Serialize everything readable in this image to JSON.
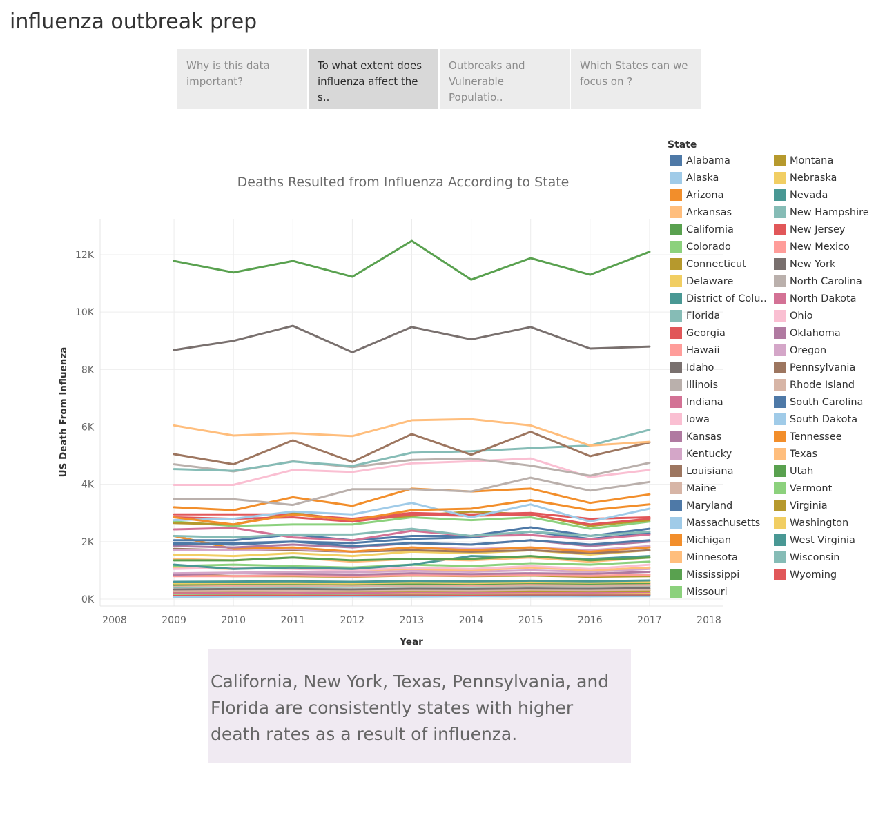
{
  "app": {
    "title": "influenza outbreak prep"
  },
  "story": {
    "points": [
      {
        "label": "Why is this data important?",
        "active": false
      },
      {
        "label": "To what extent does influenza affect the s..",
        "active": true
      },
      {
        "label": "Outbreaks and Vulnerable Populatio..",
        "active": false
      },
      {
        "label": "Which States can we focus on ?",
        "active": false
      }
    ]
  },
  "caption": "California, New York, Texas, Pennsylvania, and Florida are consistently states with higher death rates as a result of influenza.",
  "legend": {
    "title": "State",
    "items": [
      {
        "label": "Alabama",
        "color": "#4e79a7"
      },
      {
        "label": "Alaska",
        "color": "#a0cbe8"
      },
      {
        "label": "Arizona",
        "color": "#f28e2b"
      },
      {
        "label": "Arkansas",
        "color": "#ffbe7d"
      },
      {
        "label": "California",
        "color": "#59a14f"
      },
      {
        "label": "Colorado",
        "color": "#8cd17d"
      },
      {
        "label": "Connecticut",
        "color": "#b6992d"
      },
      {
        "label": "Delaware",
        "color": "#f1ce63"
      },
      {
        "label": "District of Colu..",
        "color": "#499894"
      },
      {
        "label": "Florida",
        "color": "#86bcb6"
      },
      {
        "label": "Georgia",
        "color": "#e15759"
      },
      {
        "label": "Hawaii",
        "color": "#ff9d9a"
      },
      {
        "label": "Idaho",
        "color": "#79706e"
      },
      {
        "label": "Illinois",
        "color": "#bab0ac"
      },
      {
        "label": "Indiana",
        "color": "#d37295"
      },
      {
        "label": "Iowa",
        "color": "#fabfd2"
      },
      {
        "label": "Kansas",
        "color": "#b07aa1"
      },
      {
        "label": "Kentucky",
        "color": "#d4a6c8"
      },
      {
        "label": "Louisiana",
        "color": "#9d7660"
      },
      {
        "label": "Maine",
        "color": "#d7b5a6"
      },
      {
        "label": "Maryland",
        "color": "#4e79a7"
      },
      {
        "label": "Massachusetts",
        "color": "#a0cbe8"
      },
      {
        "label": "Michigan",
        "color": "#f28e2b"
      },
      {
        "label": "Minnesota",
        "color": "#ffbe7d"
      },
      {
        "label": "Mississippi",
        "color": "#59a14f"
      },
      {
        "label": "Missouri",
        "color": "#8cd17d"
      },
      {
        "label": "Montana",
        "color": "#b6992d"
      },
      {
        "label": "Nebraska",
        "color": "#f1ce63"
      },
      {
        "label": "Nevada",
        "color": "#499894"
      },
      {
        "label": "New Hampshire",
        "color": "#86bcb6"
      },
      {
        "label": "New Jersey",
        "color": "#e15759"
      },
      {
        "label": "New Mexico",
        "color": "#ff9d9a"
      },
      {
        "label": "New York",
        "color": "#79706e"
      },
      {
        "label": "North Carolina",
        "color": "#bab0ac"
      },
      {
        "label": "North Dakota",
        "color": "#d37295"
      },
      {
        "label": "Ohio",
        "color": "#fabfd2"
      },
      {
        "label": "Oklahoma",
        "color": "#b07aa1"
      },
      {
        "label": "Oregon",
        "color": "#d4a6c8"
      },
      {
        "label": "Pennsylvania",
        "color": "#9d7660"
      },
      {
        "label": "Rhode Island",
        "color": "#d7b5a6"
      },
      {
        "label": "South Carolina",
        "color": "#4e79a7"
      },
      {
        "label": "South Dakota",
        "color": "#a0cbe8"
      },
      {
        "label": "Tennessee",
        "color": "#f28e2b"
      },
      {
        "label": "Texas",
        "color": "#ffbe7d"
      },
      {
        "label": "Utah",
        "color": "#59a14f"
      },
      {
        "label": "Vermont",
        "color": "#8cd17d"
      },
      {
        "label": "Virginia",
        "color": "#b6992d"
      },
      {
        "label": "Washington",
        "color": "#f1ce63"
      },
      {
        "label": "West Virginia",
        "color": "#499894"
      },
      {
        "label": "Wisconsin",
        "color": "#86bcb6"
      },
      {
        "label": "Wyoming",
        "color": "#e15759"
      }
    ]
  },
  "chart_data": {
    "type": "line",
    "title": "Deaths Resulted from Influenza According to State",
    "xlabel": "Year",
    "ylabel": "US Death From Influenza",
    "x_ticks": [
      2008,
      2009,
      2010,
      2011,
      2012,
      2013,
      2014,
      2015,
      2016,
      2017,
      2018
    ],
    "xlim": [
      2008,
      2018
    ],
    "y_ticks": [
      0,
      2000,
      4000,
      6000,
      8000,
      10000,
      12000
    ],
    "y_tick_labels": [
      "0K",
      "2K",
      "4K",
      "6K",
      "8K",
      "10K",
      "12K"
    ],
    "ylim": [
      0,
      13000
    ],
    "grid": true,
    "legend_position": "right",
    "x": [
      2009,
      2010,
      2011,
      2012,
      2013,
      2014,
      2015,
      2016,
      2017
    ],
    "series": [
      {
        "name": "Alabama",
        "color": "#4e79a7",
        "values": [
          1950,
          1900,
          2000,
          1850,
          1950,
          1900,
          2050,
          1900,
          2050
        ]
      },
      {
        "name": "Alaska",
        "color": "#a0cbe8",
        "values": [
          80,
          90,
          90,
          95,
          90,
          100,
          95,
          95,
          100
        ]
      },
      {
        "name": "Arizona",
        "color": "#f28e2b",
        "values": [
          2200,
          1750,
          1800,
          1650,
          1800,
          1700,
          1800,
          1650,
          1800
        ]
      },
      {
        "name": "Arkansas",
        "color": "#ffbe7d",
        "values": [
          1100,
          1050,
          1100,
          1000,
          1050,
          1000,
          1100,
          1000,
          1100
        ]
      },
      {
        "name": "California",
        "color": "#59a14f",
        "values": [
          11780,
          11380,
          11780,
          11230,
          12480,
          11130,
          11880,
          11300,
          12100
        ]
      },
      {
        "name": "Colorado",
        "color": "#8cd17d",
        "values": [
          1150,
          1200,
          1150,
          1100,
          1200,
          1150,
          1250,
          1200,
          1300
        ]
      },
      {
        "name": "Connecticut",
        "color": "#b6992d",
        "values": [
          850,
          800,
          800,
          780,
          820,
          800,
          820,
          780,
          800
        ]
      },
      {
        "name": "Delaware",
        "color": "#f1ce63",
        "values": [
          200,
          210,
          200,
          220,
          210,
          220,
          210,
          230,
          220
        ]
      },
      {
        "name": "District of Colu..",
        "color": "#499894",
        "values": [
          150,
          150,
          140,
          150,
          140,
          150,
          140,
          130,
          130
        ]
      },
      {
        "name": "Florida",
        "color": "#86bcb6",
        "values": [
          4530,
          4470,
          4790,
          4640,
          5100,
          5150,
          5260,
          5350,
          5900
        ]
      },
      {
        "name": "Georgia",
        "color": "#e15759",
        "values": [
          2950,
          2950,
          2950,
          2800,
          3000,
          2950,
          3000,
          2800,
          2850
        ]
      },
      {
        "name": "Hawaii",
        "color": "#ff9d9a",
        "values": [
          500,
          500,
          520,
          510,
          520,
          500,
          520,
          510,
          520
        ]
      },
      {
        "name": "Idaho",
        "color": "#79706e",
        "values": [
          340,
          350,
          350,
          340,
          360,
          350,
          370,
          360,
          380
        ]
      },
      {
        "name": "Illinois",
        "color": "#bab0ac",
        "values": [
          3480,
          3480,
          3280,
          3830,
          3830,
          3750,
          4230,
          3780,
          4080
        ]
      },
      {
        "name": "Indiana",
        "color": "#d37295",
        "values": [
          2430,
          2480,
          2150,
          2050,
          2380,
          2200,
          2230,
          2080,
          2250
        ]
      },
      {
        "name": "Iowa",
        "color": "#fabfd2",
        "values": [
          1050,
          1100,
          1050,
          1000,
          1100,
          1050,
          1150,
          1050,
          1200
        ]
      },
      {
        "name": "Kansas",
        "color": "#b07aa1",
        "values": [
          850,
          900,
          880,
          850,
          900,
          870,
          900,
          880,
          950
        ]
      },
      {
        "name": "Kentucky",
        "color": "#d4a6c8",
        "values": [
          1700,
          1700,
          1750,
          1650,
          1800,
          1750,
          1800,
          1700,
          1850
        ]
      },
      {
        "name": "Louisiana",
        "color": "#9d7660",
        "values": [
          1750,
          1700,
          1700,
          1650,
          1700,
          1650,
          1700,
          1600,
          1700
        ]
      },
      {
        "name": "Maine",
        "color": "#d7b5a6",
        "values": [
          450,
          460,
          450,
          460,
          470,
          460,
          480,
          470,
          480
        ]
      },
      {
        "name": "Maryland",
        "color": "#4e79a7",
        "values": [
          2050,
          2050,
          2250,
          2050,
          2200,
          2200,
          2500,
          2200,
          2450
        ]
      },
      {
        "name": "Massachusetts",
        "color": "#a0cbe8",
        "values": [
          2750,
          2800,
          3050,
          2950,
          3350,
          2850,
          3300,
          2700,
          3150
        ]
      },
      {
        "name": "Michigan",
        "color": "#f28e2b",
        "values": [
          3200,
          3100,
          3550,
          3250,
          3850,
          3750,
          3850,
          3350,
          3650
        ]
      },
      {
        "name": "Minnesota",
        "color": "#ffbe7d",
        "values": [
          1400,
          1350,
          1450,
          1300,
          1400,
          1350,
          1450,
          1300,
          1450
        ]
      },
      {
        "name": "Mississippi",
        "color": "#59a14f",
        "values": [
          1350,
          1350,
          1450,
          1350,
          1400,
          1400,
          1500,
          1350,
          1450
        ]
      },
      {
        "name": "Missouri",
        "color": "#8cd17d",
        "values": [
          2700,
          2550,
          2600,
          2600,
          2850,
          2750,
          2850,
          2450,
          2700
        ]
      },
      {
        "name": "Montana",
        "color": "#b6992d",
        "values": [
          270,
          280,
          280,
          270,
          290,
          280,
          300,
          290,
          300
        ]
      },
      {
        "name": "Nebraska",
        "color": "#f1ce63",
        "values": [
          550,
          560,
          560,
          550,
          580,
          560,
          590,
          570,
          600
        ]
      },
      {
        "name": "Nevada",
        "color": "#499894",
        "values": [
          1200,
          1050,
          1100,
          1050,
          1200,
          1500,
          1450,
          1400,
          1500
        ]
      },
      {
        "name": "New Hampshire",
        "color": "#86bcb6",
        "values": [
          420,
          430,
          420,
          430,
          440,
          430,
          450,
          440,
          450
        ]
      },
      {
        "name": "New Jersey",
        "color": "#e15759",
        "values": [
          2850,
          2800,
          2850,
          2700,
          2950,
          2900,
          2950,
          2600,
          2800
        ]
      },
      {
        "name": "New Mexico",
        "color": "#ff9d9a",
        "values": [
          800,
          800,
          820,
          790,
          830,
          810,
          840,
          810,
          850
        ]
      },
      {
        "name": "New York",
        "color": "#79706e",
        "values": [
          8680,
          9000,
          9520,
          8600,
          9480,
          9050,
          9480,
          8730,
          8800
        ]
      },
      {
        "name": "North Carolina",
        "color": "#bab0ac",
        "values": [
          4700,
          4450,
          4800,
          4600,
          4850,
          4900,
          4650,
          4300,
          4750
        ]
      },
      {
        "name": "North Dakota",
        "color": "#d37295",
        "values": [
          220,
          230,
          230,
          220,
          240,
          230,
          240,
          230,
          250
        ]
      },
      {
        "name": "Ohio",
        "color": "#fabfd2",
        "values": [
          3980,
          3980,
          4500,
          4430,
          4730,
          4800,
          4900,
          4250,
          4500
        ]
      },
      {
        "name": "Oklahoma",
        "color": "#b07aa1",
        "values": [
          1850,
          1800,
          1900,
          1800,
          1950,
          1900,
          2050,
          1850,
          2000
        ]
      },
      {
        "name": "Oregon",
        "color": "#d4a6c8",
        "values": [
          900,
          920,
          950,
          930,
          980,
          950,
          1000,
          950,
          1050
        ]
      },
      {
        "name": "Pennsylvania",
        "color": "#9d7660",
        "values": [
          5050,
          4700,
          5530,
          4780,
          5750,
          5030,
          5830,
          4980,
          5460
        ]
      },
      {
        "name": "Rhode Island",
        "color": "#d7b5a6",
        "values": [
          300,
          310,
          300,
          310,
          320,
          310,
          330,
          320,
          330
        ]
      },
      {
        "name": "South Carolina",
        "color": "#4e79a7",
        "values": [
          1900,
          1950,
          2000,
          1950,
          2100,
          2150,
          2350,
          2100,
          2300
        ]
      },
      {
        "name": "South Dakota",
        "color": "#a0cbe8",
        "values": [
          200,
          210,
          210,
          200,
          220,
          210,
          220,
          210,
          230
        ]
      },
      {
        "name": "Tennessee",
        "color": "#f28e2b",
        "values": [
          2850,
          2600,
          2950,
          2750,
          3100,
          3150,
          3450,
          3100,
          3300
        ]
      },
      {
        "name": "Texas",
        "color": "#ffbe7d",
        "values": [
          6050,
          5700,
          5780,
          5680,
          6230,
          6270,
          6050,
          5350,
          5480
        ]
      },
      {
        "name": "Utah",
        "color": "#59a14f",
        "values": [
          500,
          520,
          530,
          510,
          540,
          530,
          560,
          540,
          560
        ]
      },
      {
        "name": "Vermont",
        "color": "#8cd17d",
        "values": [
          180,
          190,
          190,
          185,
          195,
          190,
          200,
          195,
          200
        ]
      },
      {
        "name": "Virginia",
        "color": "#b6992d",
        "values": [
          2650,
          2600,
          3000,
          2750,
          2900,
          3050,
          2950,
          2550,
          2750
        ]
      },
      {
        "name": "Washington",
        "color": "#f1ce63",
        "values": [
          1550,
          1500,
          1600,
          1500,
          1650,
          1600,
          1700,
          1550,
          1700
        ]
      },
      {
        "name": "West Virginia",
        "color": "#499894",
        "values": [
          600,
          610,
          620,
          600,
          630,
          620,
          640,
          620,
          650
        ]
      },
      {
        "name": "Wisconsin",
        "color": "#86bcb6",
        "values": [
          2200,
          2150,
          2250,
          2250,
          2450,
          2200,
          2350,
          2200,
          2350
        ]
      },
      {
        "name": "Wyoming",
        "color": "#e15759",
        "values": [
          150,
          155,
          150,
          155,
          160,
          155,
          165,
          160,
          165
        ]
      }
    ]
  }
}
